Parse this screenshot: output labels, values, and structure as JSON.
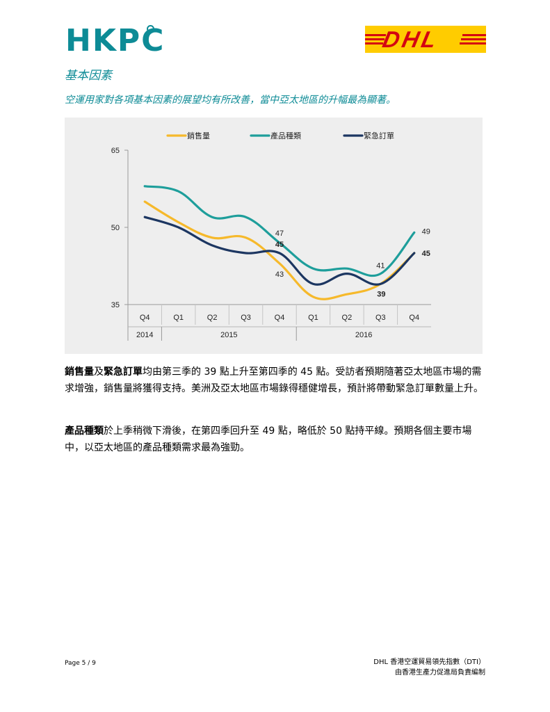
{
  "header": {
    "hkpc_logo": "HKPC",
    "dhl_logo": "DHL"
  },
  "section": {
    "title": "基本因素",
    "subtitle": "空運用家對各項基本因素的展望均有所改善，當中亞太地區的升幅最為顯著。"
  },
  "chart_data": {
    "type": "line",
    "categories": [
      "Q4",
      "Q1",
      "Q2",
      "Q3",
      "Q4",
      "Q1",
      "Q2",
      "Q3",
      "Q4"
    ],
    "year_labels": [
      {
        "label": "2014",
        "from": 0,
        "to": 0
      },
      {
        "label": "2015",
        "from": 1,
        "to": 4
      },
      {
        "label": "2016",
        "from": 5,
        "to": 8
      }
    ],
    "ylim": [
      35,
      65
    ],
    "yticks": [
      "35",
      "50",
      "65"
    ],
    "series": [
      {
        "name": "銷售量",
        "color": "#f6b92b",
        "values": [
          55,
          51,
          48,
          48,
          43,
          36.5,
          37,
          39,
          45
        ]
      },
      {
        "name": "產品種類",
        "color": "#1e9e9b",
        "values": [
          58,
          57,
          52,
          52,
          47,
          42,
          42,
          41,
          49
        ]
      },
      {
        "name": "緊急訂單",
        "color": "#1c3661",
        "values": [
          52,
          50,
          46.5,
          45,
          45,
          39,
          41,
          39,
          45
        ]
      }
    ],
    "data_labels": [
      {
        "text": "47",
        "series": 1,
        "index": 4
      },
      {
        "text": "45",
        "series": 2,
        "index": 4
      },
      {
        "text": "43",
        "series": 0,
        "index": 4
      },
      {
        "text": "41",
        "series": 1,
        "index": 7
      },
      {
        "text": "39",
        "series": 2,
        "index": 7
      },
      {
        "text": "49",
        "series": 1,
        "index": 8
      },
      {
        "text": "45",
        "series": 2,
        "index": 8
      }
    ],
    "legend": "top"
  },
  "body": {
    "p1_b1": "銷售量",
    "p1_t1": "及",
    "p1_b2": "緊急訂單",
    "p1_t2": "均由第三季的 39 點上升至第四季的 45 點。受訪者預期隨著亞太地區市場的需求增強，銷售量將獲得支持。美洲及亞太地區市場錄得穩健增長，預計將帶動緊急訂單數量上升。",
    "p2_b1": "產品種類",
    "p2_t1": "於上季稍微下滑後，在第四季回升至 49 點，略低於 50 點持平線。預期各個主要市場中，以亞太地區的產品種類需求最為強勁。"
  },
  "footer": {
    "page": "Page 5 / 9",
    "title": "DHL 香港空運貿易領先指數（DTI）",
    "compiled": "由香港生產力促進局負責編制"
  }
}
